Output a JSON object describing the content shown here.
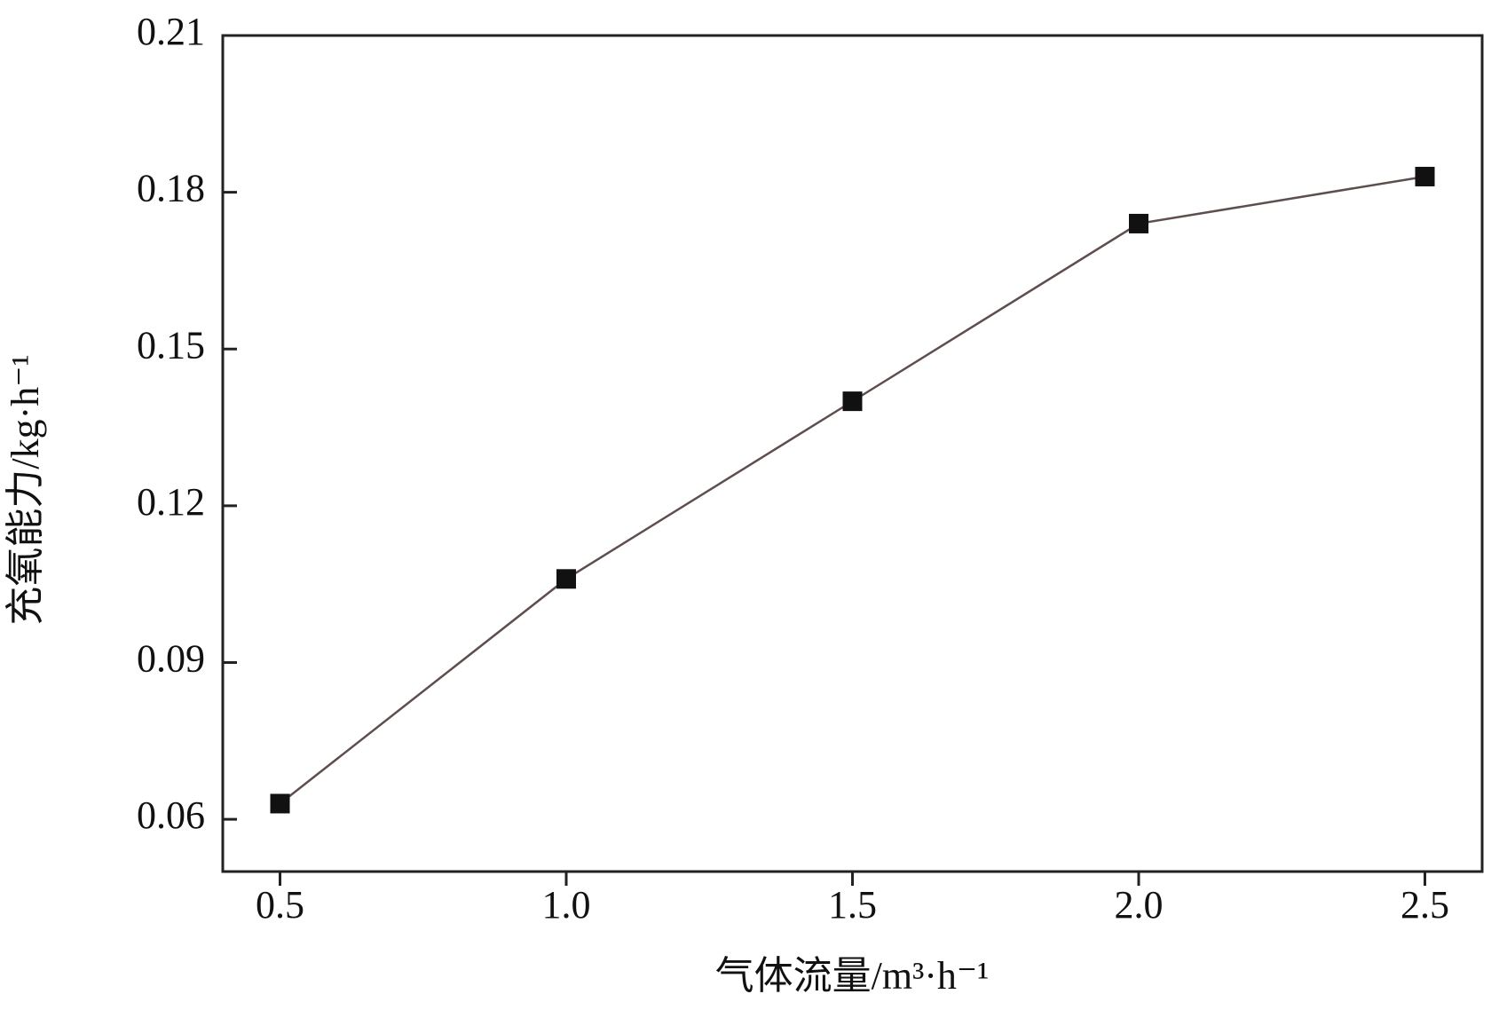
{
  "chart_data": {
    "type": "line",
    "x_label": "气体流量/m³·h⁻¹",
    "y_label": "充氧能力/kg·h⁻¹",
    "x": [
      0.5,
      1.0,
      1.5,
      2.0,
      2.5
    ],
    "series": [
      {
        "color": "#5e4e4e",
        "marker_color": "#111111",
        "values": [
          0.063,
          0.106,
          0.14,
          0.174,
          0.183
        ]
      }
    ],
    "xlim": [
      0.4,
      2.6
    ],
    "xticks": [
      0.5,
      {
        "value": 1,
        "label": "1.0"
      },
      1.5,
      {
        "value": 2,
        "label": "2.0"
      },
      2.5
    ],
    "ylim": [
      0.05,
      0.21
    ],
    "yticks": [
      0.06,
      0.09,
      0.12,
      0.15,
      0.18,
      0.21
    ],
    "grid": false
  }
}
